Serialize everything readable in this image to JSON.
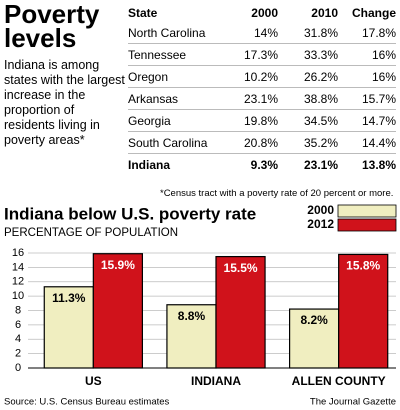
{
  "header": {
    "title": "Poverty levels",
    "description": "Indiana is among states with the largest increase in the proportion of residents living in poverty areas*"
  },
  "table": {
    "columns": [
      "State",
      "2000",
      "2010",
      "Change"
    ],
    "rows": [
      [
        "North Carolina",
        "14%",
        "31.8%",
        "17.8%"
      ],
      [
        "Tennessee",
        "17.3%",
        "33.3%",
        "16%"
      ],
      [
        "Oregon",
        "10.2%",
        "26.2%",
        "16%"
      ],
      [
        "Arkansas",
        "23.1%",
        "38.8%",
        "15.7%"
      ],
      [
        "Georgia",
        "19.8%",
        "34.5%",
        "14.7%"
      ],
      [
        "South Carolina",
        "20.8%",
        "35.2%",
        "14.4%"
      ],
      [
        "Indiana",
        "9.3%",
        "23.1%",
        "13.8%"
      ]
    ],
    "footnote": "*Census tract with a poverty rate of 20 percent or more."
  },
  "chart_data": {
    "type": "bar",
    "title": "Indiana below U.S. poverty rate",
    "subtitle": "PERCENTAGE OF POPULATION",
    "categories": [
      "US",
      "INDIANA",
      "ALLEN COUNTY"
    ],
    "series": [
      {
        "name": "2000",
        "color": "#f0eec0",
        "values": [
          11.3,
          8.8,
          8.2
        ],
        "value_labels": [
          "11.3%",
          "8.8%",
          "8.2%"
        ]
      },
      {
        "name": "2012",
        "color": "#d0121b",
        "values": [
          15.9,
          15.5,
          15.8
        ],
        "value_labels": [
          "15.9%",
          "15.5%",
          "15.8%"
        ]
      }
    ],
    "ylim": [
      0,
      16
    ],
    "yticks": [
      0,
      2,
      4,
      6,
      8,
      10,
      12,
      14,
      16
    ],
    "grid": true,
    "legend": "top-right"
  },
  "footer": {
    "source": "Source: U.S. Census Bureau estimates",
    "credit": "The Journal Gazette"
  }
}
